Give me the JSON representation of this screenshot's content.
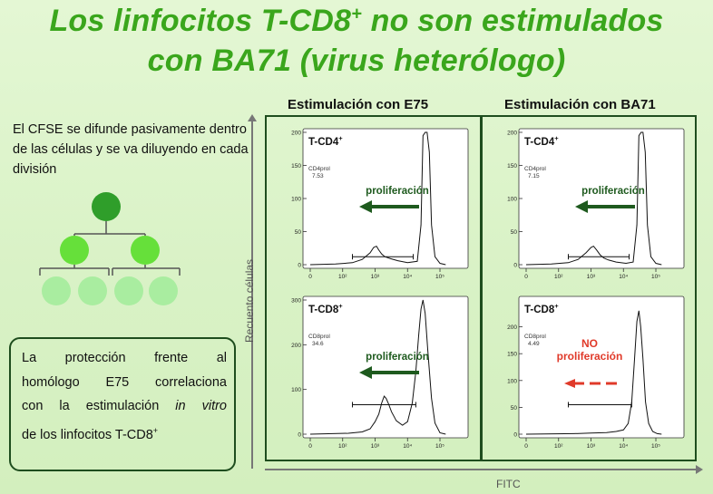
{
  "title": {
    "line1_pre": "Los linfocitos T-CD8",
    "line1_sup": "+",
    "line1_post": " no son estimulados",
    "line2": "con BA71 (virus heterólogo)"
  },
  "intro_text": "El CFSE se difunde pasivamente dentro de las células y se va diluyendo en cada división",
  "note": {
    "l1": "La protección frente al",
    "l2": "homólogo E75 correlaciona",
    "l3_pre": "con la estimulación ",
    "l3_em": "in vitro",
    "l4_pre": "de los linfocitos T-CD8",
    "l4_sup": "+"
  },
  "columns": [
    "Estimulación con E75",
    "Estimulación con BA71"
  ],
  "y_axis_label": "Recuento células",
  "x_axis_label": "FITC",
  "colors": {
    "title_green": "#3aa61c",
    "frame": "#1e4d1e",
    "arrow_green": "#1e5a1e",
    "arrow_red": "#e03a2a",
    "cell_dark": "#2f9e2a",
    "cell_mid": "#66e03a",
    "cell_light": "#a9eda0"
  },
  "chart_data": [
    {
      "type": "line",
      "panel": "E75-CD4",
      "label": "T-CD4",
      "label_sup": "+",
      "gate_name": "CD4prol",
      "gate_value": "7.53",
      "annotation": "proliferación",
      "annotation_color": "green",
      "ylim": [
        0,
        200
      ],
      "yticks": [
        0,
        50,
        100,
        150,
        200
      ],
      "xlog": true,
      "xlim": [
        10,
        500000
      ],
      "xticks": [
        {
          "v": 10,
          "t": "0"
        },
        {
          "v": 100,
          "t": "10²"
        },
        {
          "v": 1000,
          "t": "10³"
        },
        {
          "v": 10000,
          "t": "10⁴"
        },
        {
          "v": 100000,
          "t": "10⁵"
        }
      ],
      "x": [
        10,
        60,
        200,
        400,
        700,
        900,
        1100,
        1300,
        1600,
        2000,
        3000,
        5000,
        10000,
        20000,
        26000,
        30000,
        35000,
        40000,
        47000,
        55000,
        70000,
        100000,
        150000
      ],
      "values": [
        0,
        1,
        3,
        8,
        18,
        26,
        28,
        22,
        16,
        12,
        9,
        6,
        3,
        5,
        60,
        195,
        200,
        200,
        170,
        60,
        12,
        2,
        0
      ],
      "gate_range": [
        200,
        15000
      ]
    },
    {
      "type": "line",
      "panel": "E75-CD8",
      "label": "T-CD8",
      "label_sup": "+",
      "gate_name": "CD8prol",
      "gate_value": "34.6",
      "annotation": "proliferación",
      "annotation_color": "green",
      "ylim": [
        0,
        300
      ],
      "yticks": [
        0,
        100,
        200,
        300
      ],
      "xlog": true,
      "xlim": [
        10,
        500000
      ],
      "xticks": [
        {
          "v": 10,
          "t": "0"
        },
        {
          "v": 100,
          "t": "10²"
        },
        {
          "v": 1000,
          "t": "10³"
        },
        {
          "v": 10000,
          "t": "10⁴"
        },
        {
          "v": 100000,
          "t": "10⁵"
        }
      ],
      "x": [
        10,
        150,
        400,
        700,
        1000,
        1300,
        1600,
        1900,
        2200,
        2600,
        3200,
        4500,
        7000,
        10000,
        14000,
        18000,
        22000,
        26000,
        30000,
        35000,
        42000,
        55000,
        70000,
        100000,
        150000
      ],
      "values": [
        0,
        2,
        5,
        12,
        28,
        45,
        70,
        85,
        80,
        68,
        50,
        30,
        20,
        28,
        70,
        140,
        220,
        280,
        300,
        270,
        190,
        80,
        25,
        3,
        0
      ],
      "gate_range": [
        200,
        18000
      ]
    },
    {
      "type": "line",
      "panel": "BA71-CD4",
      "label": "T-CD4",
      "label_sup": "+",
      "gate_name": "CD4prol",
      "gate_value": "7.15",
      "annotation": "proliferación",
      "annotation_color": "green",
      "ylim": [
        0,
        200
      ],
      "yticks": [
        0,
        50,
        100,
        150,
        200
      ],
      "xlog": true,
      "xlim": [
        10,
        500000
      ],
      "xticks": [
        {
          "v": 10,
          "t": "0"
        },
        {
          "v": 100,
          "t": "10²"
        },
        {
          "v": 1000,
          "t": "10³"
        },
        {
          "v": 10000,
          "t": "10⁴"
        },
        {
          "v": 100000,
          "t": "10⁵"
        }
      ],
      "x": [
        10,
        60,
        200,
        400,
        700,
        1000,
        1200,
        1500,
        1900,
        2500,
        3500,
        6000,
        12000,
        20000,
        26000,
        30000,
        35000,
        40000,
        47000,
        55000,
        70000,
        100000,
        150000
      ],
      "values": [
        0,
        1,
        3,
        8,
        18,
        26,
        28,
        22,
        15,
        10,
        7,
        4,
        2,
        4,
        60,
        195,
        200,
        200,
        170,
        60,
        12,
        2,
        0
      ],
      "gate_range": [
        200,
        15000
      ]
    },
    {
      "type": "line",
      "panel": "BA71-CD8",
      "label": "T-CD8",
      "label_sup": "+",
      "gate_name": "CD8prol",
      "gate_value": "4.49",
      "annotation": "NO proliferación",
      "annotation_color": "red",
      "ylim": [
        0,
        250
      ],
      "yticks": [
        0,
        50,
        100,
        150,
        200
      ],
      "xlog": true,
      "xlim": [
        10,
        500000
      ],
      "xticks": [
        {
          "v": 10,
          "t": "0"
        },
        {
          "v": 100,
          "t": "10²"
        },
        {
          "v": 1000,
          "t": "10³"
        },
        {
          "v": 10000,
          "t": "10⁴"
        },
        {
          "v": 100000,
          "t": "10⁵"
        }
      ],
      "x": [
        10,
        300,
        1000,
        3000,
        6000,
        10000,
        14000,
        18000,
        22000,
        26000,
        30000,
        34000,
        40000,
        48000,
        60000,
        80000,
        110000,
        150000
      ],
      "values": [
        0,
        1,
        2,
        3,
        5,
        8,
        20,
        60,
        140,
        210,
        230,
        200,
        140,
        60,
        20,
        5,
        1,
        0
      ],
      "gate_range": [
        200,
        18000
      ]
    }
  ]
}
